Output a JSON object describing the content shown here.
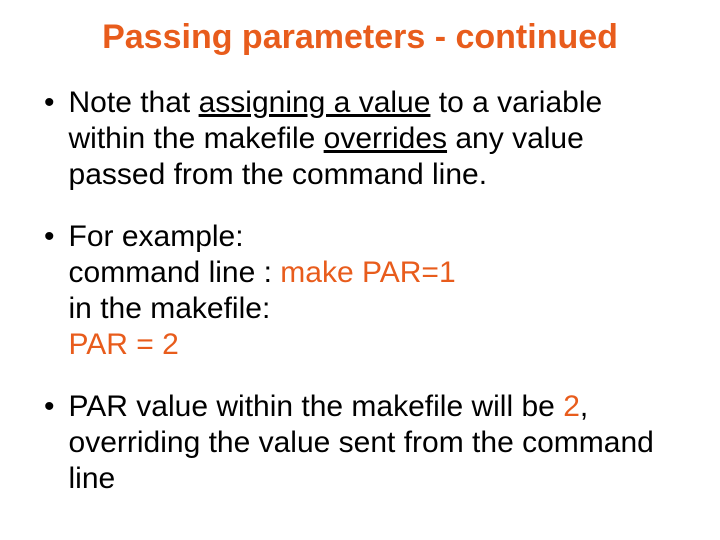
{
  "title": {
    "text": "Passing parameters - continued",
    "color": "#e85c1c",
    "fontsize": 34
  },
  "body": {
    "fontsize": 30,
    "text_color": "#000000",
    "accent_color": "#e85c1c"
  },
  "bullets": [
    {
      "segments": [
        {
          "text": "Note that ",
          "u": false,
          "c": "#000000"
        },
        {
          "text": "assigning a value",
          "u": true,
          "c": "#000000"
        },
        {
          "text": " to a variable within the makefile ",
          "u": false,
          "c": "#000000"
        },
        {
          "text": "overrides",
          "u": true,
          "c": "#000000"
        },
        {
          "text": " any value passed from the command line.",
          "u": false,
          "c": "#000000"
        }
      ]
    },
    {
      "lines": [
        {
          "segments": [
            {
              "text": "For example:",
              "u": false,
              "c": "#000000"
            }
          ]
        },
        {
          "segments": [
            {
              "text": "command line : ",
              "u": false,
              "c": "#000000"
            },
            {
              "text": "make PAR=1",
              "u": false,
              "c": "#e85c1c"
            }
          ]
        },
        {
          "segments": [
            {
              "text": "in the makefile:",
              "u": false,
              "c": "#000000"
            }
          ]
        },
        {
          "segments": [
            {
              "text": "PAR = 2",
              "u": false,
              "c": "#e85c1c"
            }
          ]
        }
      ]
    },
    {
      "segments": [
        {
          "text": "PAR value within the makefile will be ",
          "u": false,
          "c": "#000000"
        },
        {
          "text": "2",
          "u": false,
          "c": "#e85c1c"
        },
        {
          "text": ", overriding the value sent from the command line",
          "u": false,
          "c": "#000000"
        }
      ]
    }
  ]
}
